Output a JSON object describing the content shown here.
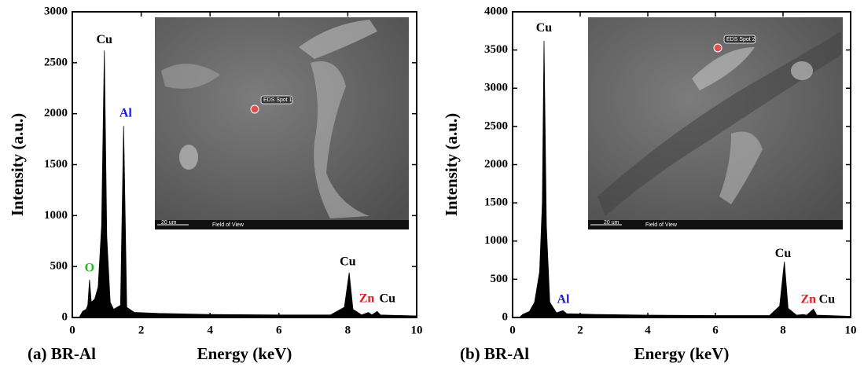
{
  "chart_data": [
    {
      "type": "area",
      "label": "(a) BR-Al",
      "xlabel": "Energy (keV)",
      "ylabel": "Intensity (a.u.)",
      "xlim": [
        0,
        10
      ],
      "ylim": [
        0,
        3000
      ],
      "xticks": [
        0,
        2,
        4,
        6,
        8,
        10
      ],
      "yticks": [
        0,
        500,
        1000,
        1500,
        2000,
        2500,
        3000
      ],
      "color": "#000000",
      "x": [
        0.2,
        0.3,
        0.4,
        0.45,
        0.5,
        0.55,
        0.65,
        0.75,
        0.85,
        0.93,
        1.0,
        1.1,
        1.2,
        1.4,
        1.49,
        1.58,
        1.8,
        2.5,
        4,
        6,
        7.5,
        7.9,
        8.04,
        8.15,
        8.4,
        8.6,
        8.7,
        8.85,
        8.95,
        10
      ],
      "values": [
        0,
        60,
        80,
        120,
        370,
        150,
        180,
        300,
        900,
        2620,
        800,
        150,
        80,
        120,
        1880,
        100,
        50,
        40,
        30,
        25,
        25,
        100,
        440,
        80,
        25,
        50,
        25,
        60,
        25,
        15
      ],
      "annotations": [
        {
          "text": "Cu",
          "x": 0.93,
          "y": 2720,
          "color": "#000000"
        },
        {
          "text": "Al",
          "x": 1.55,
          "y": 2000,
          "color": "#1a1adf"
        },
        {
          "text": "O",
          "x": 0.5,
          "y": 480,
          "color": "#22bb22"
        },
        {
          "text": "Cu",
          "x": 8.0,
          "y": 540,
          "color": "#000000"
        },
        {
          "text": "Zn",
          "x": 8.55,
          "y": 180,
          "color": "#e02020"
        },
        {
          "text": "Cu",
          "x": 9.15,
          "y": 180,
          "color": "#000000"
        }
      ],
      "inset": {
        "spot": "EDS Spot 1",
        "scale": "20 um",
        "view": "Field of View"
      }
    },
    {
      "type": "area",
      "label": "(b) BR-Al",
      "xlabel": "Energy (keV)",
      "ylabel": "Intensity (a.u.)",
      "xlim": [
        0,
        10
      ],
      "ylim": [
        0,
        4000
      ],
      "xticks": [
        0,
        2,
        4,
        6,
        8,
        10
      ],
      "yticks": [
        0,
        500,
        1000,
        1500,
        2000,
        2500,
        3000,
        3500,
        4000
      ],
      "color": "#000000",
      "x": [
        0.2,
        0.3,
        0.5,
        0.65,
        0.8,
        0.88,
        0.93,
        1.0,
        1.1,
        1.3,
        1.49,
        1.6,
        2.5,
        4,
        6,
        7.6,
        7.9,
        8.04,
        8.15,
        8.4,
        8.6,
        8.7,
        8.9,
        9.0,
        10
      ],
      "values": [
        0,
        40,
        80,
        200,
        600,
        1500,
        3620,
        1200,
        200,
        60,
        90,
        50,
        40,
        30,
        25,
        25,
        150,
        730,
        120,
        30,
        40,
        30,
        110,
        30,
        15
      ],
      "annotations": [
        {
          "text": "Cu",
          "x": 0.93,
          "y": 3780,
          "color": "#000000"
        },
        {
          "text": "Al",
          "x": 1.5,
          "y": 230,
          "color": "#1a1adf"
        },
        {
          "text": "Cu",
          "x": 8.0,
          "y": 830,
          "color": "#000000"
        },
        {
          "text": "Zn",
          "x": 8.75,
          "y": 230,
          "color": "#e02020"
        },
        {
          "text": "Cu",
          "x": 9.3,
          "y": 230,
          "color": "#000000"
        }
      ],
      "inset": {
        "spot": "EDS Spot 2",
        "scale": "20 um",
        "view": "Field of View"
      }
    }
  ]
}
